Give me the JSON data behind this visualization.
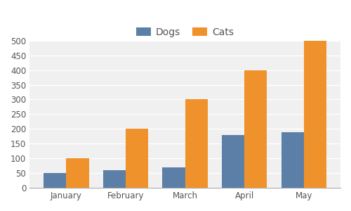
{
  "categories": [
    "January",
    "February",
    "March",
    "April",
    "May"
  ],
  "dogs": [
    50,
    60,
    70,
    180,
    190
  ],
  "cats": [
    100,
    200,
    300,
    400,
    500
  ],
  "dog_color": "#5b7fa6",
  "cat_color": "#f0922b",
  "legend_labels": [
    "Dogs",
    "Cats"
  ],
  "ylim": [
    0,
    500
  ],
  "yticks": [
    0,
    50,
    100,
    150,
    200,
    250,
    300,
    350,
    400,
    450,
    500
  ],
  "figure_bg": "#ffffff",
  "axes_bg": "#f0f0f0",
  "grid_color": "#ffffff",
  "bar_width": 0.38,
  "tick_fontsize": 8.5,
  "legend_fontsize": 10
}
